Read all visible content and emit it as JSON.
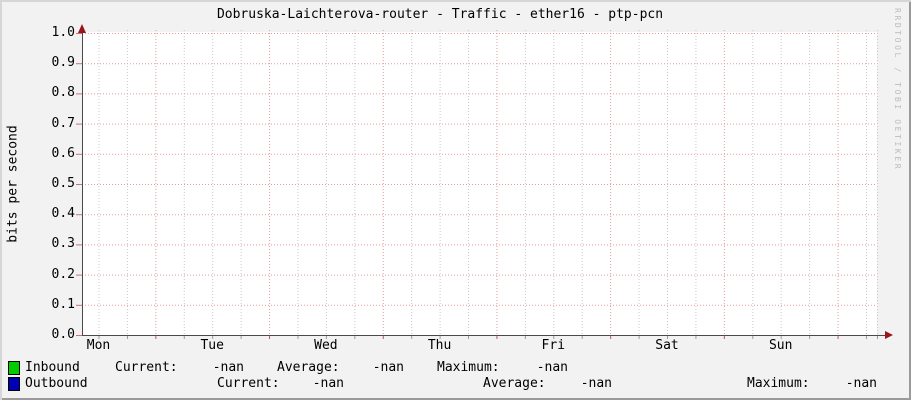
{
  "title": "Dobruska-Laichterova-router - Traffic - ether16 - ptp-pcn",
  "watermark": "RRDTOOL / TOBI OETIKER",
  "chart_data": {
    "type": "line",
    "title": "Dobruska-Laichterova-router - Traffic - ether16 - ptp-pcn",
    "xlabel": "",
    "ylabel": "bits per second",
    "ylim": [
      0.0,
      1.0
    ],
    "yticks": [
      "0.0",
      "0.1",
      "0.2",
      "0.3",
      "0.4",
      "0.5",
      "0.6",
      "0.7",
      "0.8",
      "0.9",
      "1.0"
    ],
    "x_categories": [
      "Mon",
      "Tue",
      "Wed",
      "Thu",
      "Fri",
      "Sat",
      "Sun"
    ],
    "x_range_days": 7,
    "grid": true,
    "legend_position": "bottom-left",
    "series": [
      {
        "name": "Inbound",
        "color": "#00cc00",
        "values": [],
        "current": "-nan",
        "average": "-nan",
        "maximum": "-nan"
      },
      {
        "name": "Outbound",
        "color": "#0000b3",
        "values": [],
        "current": "-nan",
        "average": "-nan",
        "maximum": "-nan"
      }
    ],
    "note": "empty graph - no data plotted, all statistics are -nan"
  },
  "legend": {
    "rows": [
      {
        "color": "#00cc00",
        "name": "Inbound",
        "current_label": "Current:",
        "current_value": "-nan",
        "average_label": "Average:",
        "average_value": "-nan",
        "maximum_label": "Maximum:",
        "maximum_value": "-nan"
      },
      {
        "color": "#0000b3",
        "name": "Outbound",
        "current_label": "Current:",
        "current_value": "-nan",
        "average_label": "Average:",
        "average_value": "-nan",
        "maximum_label": "Maximum:",
        "maximum_value": "-nan"
      }
    ]
  }
}
